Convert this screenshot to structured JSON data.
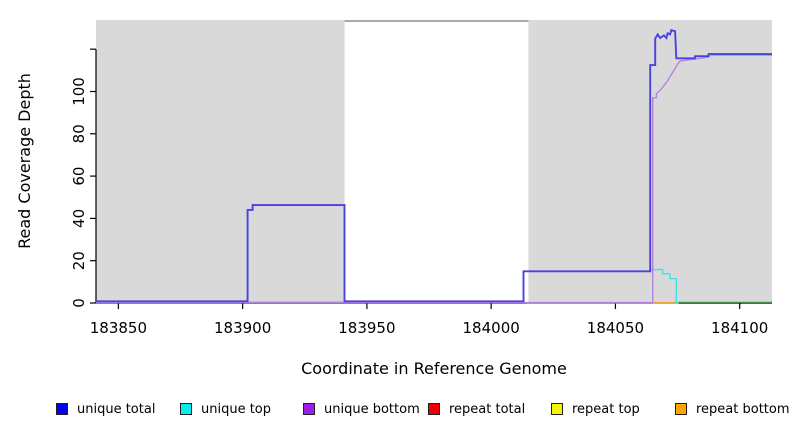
{
  "chart_data": {
    "type": "line",
    "title": "",
    "xlabel": "Coordinate in Reference Genome",
    "ylabel": "Read Coverage Depth",
    "xlim": [
      183841,
      184113
    ],
    "ylim": [
      0,
      133.8
    ],
    "x_ticks": [
      183850,
      183900,
      183950,
      184000,
      184050,
      184100
    ],
    "y_ticks": [
      0,
      20,
      40,
      60,
      80,
      100,
      120
    ],
    "y_tick_labels": [
      "0",
      "20",
      "40",
      "60",
      "80",
      "100",
      ""
    ],
    "grid": false,
    "legend_position": "bottom",
    "axis_color": "#000000",
    "shaded_regions": [
      {
        "x0": 183841,
        "x1": 183941,
        "color": "#d9d9d9"
      },
      {
        "x0": 184015,
        "x1": 184113,
        "color": "#d9d9d9"
      }
    ],
    "top_edge_line": {
      "x0": 183941,
      "x1": 184015,
      "y": 133.3,
      "color": "#a9a9a9"
    },
    "series": [
      {
        "name": "repeat total",
        "line_color": "#e0506e",
        "width": 1.2,
        "segments": [
          [
            [
              184014,
              0
            ],
            [
              184065,
              0
            ]
          ]
        ]
      },
      {
        "name": "repeat top",
        "line_color": "#f5f500",
        "width": 1.2,
        "segments": []
      },
      {
        "name": "repeat bottom",
        "line_color": "#ffa517",
        "width": 1.6,
        "segments": [
          [
            [
              184065,
              0
            ],
            [
              184075,
              0
            ]
          ]
        ]
      },
      {
        "name": "other coverage baseline",
        "line_color": "#62be62",
        "width": 1.2,
        "segments": [
          [
            [
              183902,
              0.4
            ],
            [
              183941,
              0.4
            ]
          ],
          [
            [
              184075,
              0.4
            ],
            [
              184113,
              0.4
            ]
          ]
        ]
      },
      {
        "name": "unique top",
        "line_color": "#3fe3e3",
        "width": 1.4,
        "segments": [
          [
            [
              184064,
              15.8
            ],
            [
              184069,
              15.8
            ],
            [
              184069,
              13.8
            ],
            [
              184072,
              13.8
            ],
            [
              184072,
              11.5
            ],
            [
              184074.5,
              11.5
            ],
            [
              184074.5,
              0
            ],
            [
              184075.5,
              0
            ]
          ]
        ]
      },
      {
        "name": "unique bottom",
        "line_color": "#b583dd",
        "width": 1.4,
        "segments": [
          [
            [
              183841,
              0.2
            ],
            [
              184065,
              0.2
            ],
            [
              184065,
              97
            ],
            [
              184066.5,
              97
            ],
            [
              184066.5,
              99
            ],
            [
              184068,
              100.5
            ],
            [
              184069,
              102
            ],
            [
              184070,
              103.5
            ],
            [
              184071,
              105
            ],
            [
              184072,
              107
            ],
            [
              184073,
              109
            ],
            [
              184074,
              111
            ],
            [
              184075,
              113
            ],
            [
              184076,
              114.3
            ],
            [
              184078,
              114.8
            ],
            [
              184082,
              115.3
            ],
            [
              184087.5,
              116.3
            ],
            [
              184087.5,
              117.2
            ],
            [
              184113,
              117.2
            ]
          ]
        ]
      },
      {
        "name": "unique total",
        "line_color": "#4a42e2",
        "width": 1.9,
        "segments": [
          [
            [
              183841,
              0.8
            ],
            [
              183902,
              0.8
            ],
            [
              183902,
              44
            ],
            [
              183904,
              44
            ],
            [
              183904,
              46.3
            ],
            [
              183941,
              46.3
            ],
            [
              183941,
              0.8
            ],
            [
              184013,
              0.8
            ],
            [
              184013,
              15
            ],
            [
              184064,
              15
            ],
            [
              184064,
              112.5
            ],
            [
              184066,
              112.5
            ],
            [
              184066,
              125
            ],
            [
              184067,
              127
            ],
            [
              184068,
              125.3
            ],
            [
              184069.5,
              126.5
            ],
            [
              184070.5,
              125.3
            ],
            [
              184071,
              127.5
            ],
            [
              184072,
              127
            ],
            [
              184072.5,
              129
            ],
            [
              184074,
              128.5
            ],
            [
              184074.5,
              115.7
            ],
            [
              184082,
              115.7
            ],
            [
              184082,
              116.7
            ],
            [
              184087.5,
              116.7
            ],
            [
              184087.5,
              117.7
            ],
            [
              184113,
              117.7
            ]
          ]
        ]
      }
    ],
    "legend": [
      {
        "label": "unique total",
        "color": "#0101ee"
      },
      {
        "label": "unique top",
        "color": "#00f0f0"
      },
      {
        "label": "unique bottom",
        "color": "#9b1fe8"
      },
      {
        "label": "repeat total",
        "color": "#ee0000"
      },
      {
        "label": "repeat top",
        "color": "#f5f500"
      },
      {
        "label": "repeat bottom",
        "color": "#ffa500"
      }
    ]
  }
}
